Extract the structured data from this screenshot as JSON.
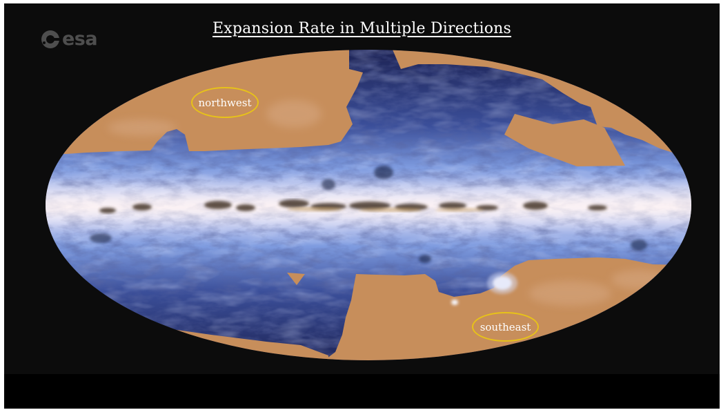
{
  "slide": {
    "title": "Expansion Rate in Multiple Directions",
    "logo_text": "esa"
  },
  "regions": {
    "northwest": "northwest",
    "southeast": "southeast"
  },
  "colors": {
    "background": "#0c0c0c",
    "letterbox": "#000000",
    "masked_region": "#c78e5b",
    "sky_blue": "#6f8ed8",
    "sky_dark": "#1b2050",
    "galactic_plane": "#ece0ee",
    "dust_lane": "#3a2a1e",
    "ellipse_outline": "#e7c219",
    "title_text": "#ffffff"
  },
  "icons": {
    "logo": "esa-logo-icon"
  }
}
